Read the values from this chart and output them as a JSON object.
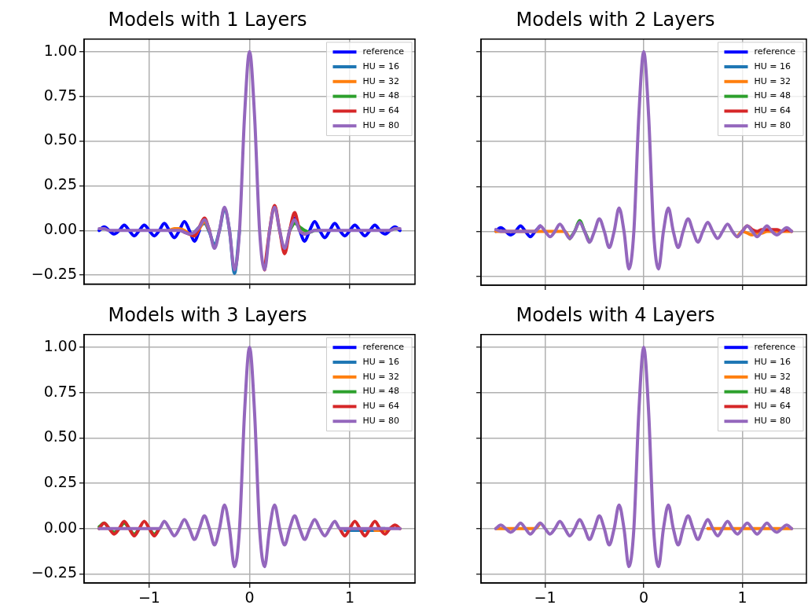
{
  "chart_data": [
    {
      "type": "line",
      "title": "Models with 1 Layers",
      "grid": true,
      "legend": "top right",
      "tick_labels": "y",
      "xlim": [
        -1.65,
        1.65
      ],
      "ylim": [
        -0.3,
        1.07
      ],
      "xticks": [
        {
          "value": -1,
          "label": null
        },
        {
          "value": 0,
          "label": null
        },
        {
          "value": 1,
          "label": null
        }
      ],
      "yticks": [
        {
          "value": -0.25,
          "label": "−0.25"
        },
        {
          "value": 0,
          "label": "0.00"
        },
        {
          "value": 0.25,
          "label": "0.25"
        },
        {
          "value": 0.5,
          "label": "0.50"
        },
        {
          "value": 0.75,
          "label": "0.75"
        },
        {
          "value": 1,
          "label": "1.00"
        }
      ],
      "x": [
        -1.5,
        -1.45,
        -1.4,
        -1.35,
        -1.3,
        -1.25,
        -1.2,
        -1.15,
        -1.1,
        -1.05,
        -1,
        -0.95,
        -0.9,
        -0.85,
        -0.8,
        -0.75,
        -0.7,
        -0.65,
        -0.6,
        -0.55,
        -0.5,
        -0.45,
        -0.4,
        -0.35,
        -0.3,
        -0.25,
        -0.2,
        -0.15,
        -0.1,
        -0.05,
        0,
        0.05,
        0.1,
        0.15,
        0.2,
        0.25,
        0.3,
        0.35,
        0.4,
        0.45,
        0.5,
        0.55,
        0.6,
        0.65,
        0.7,
        0.75,
        0.8,
        0.85,
        0.9,
        0.95,
        1,
        1.05,
        1.1,
        1.15,
        1.2,
        1.25,
        1.3,
        1.35,
        1.4,
        1.45,
        1.5
      ],
      "series": [
        {
          "name": "reference",
          "color": "#0000ff",
          "values": [
            0,
            0.02,
            0,
            -0.02,
            0,
            0.03,
            0,
            -0.03,
            0,
            0.03,
            0,
            -0.03,
            0,
            0.04,
            0,
            -0.04,
            0,
            0.05,
            0,
            -0.06,
            0,
            null,
            null,
            null,
            null,
            null,
            null,
            null,
            null,
            null,
            null,
            null,
            null,
            null,
            null,
            null,
            null,
            null,
            0,
            0.07,
            0,
            -0.06,
            0,
            0.05,
            0,
            -0.04,
            0,
            0.04,
            0,
            -0.03,
            0,
            0.03,
            0,
            -0.03,
            0,
            0.03,
            0,
            -0.02,
            0,
            0.02,
            0
          ]
        },
        {
          "name": "HU = 16",
          "color": "#1f77b4",
          "values": [
            null,
            null,
            null,
            null,
            null,
            null,
            null,
            null,
            null,
            null,
            null,
            null,
            null,
            null,
            null,
            null,
            null,
            null,
            null,
            -0.01,
            0.02,
            0.04,
            -0.01,
            -0.08,
            0,
            0.12,
            0,
            -0.24,
            0,
            null,
            null,
            null,
            null,
            null,
            null,
            null,
            null,
            null,
            null,
            null,
            null,
            null,
            null,
            null,
            null,
            null,
            null,
            null,
            null,
            null,
            null,
            null,
            null,
            null,
            null,
            null,
            null,
            null,
            null,
            null,
            null
          ]
        },
        {
          "name": "HU = 32",
          "color": "#ff7f0e",
          "values": [
            null,
            null,
            null,
            null,
            null,
            null,
            null,
            null,
            null,
            null,
            null,
            null,
            null,
            null,
            0,
            0.01,
            0.01,
            0,
            -0.02,
            -0.03,
            0.01,
            0.05,
            0,
            null,
            null,
            null,
            null,
            null,
            null,
            null,
            null,
            null,
            null,
            null,
            null,
            null,
            null,
            null,
            null,
            null,
            null,
            null,
            null,
            null,
            null,
            null,
            null,
            null,
            null,
            null,
            null,
            null,
            null,
            null,
            null,
            null,
            null,
            null,
            null,
            null,
            null
          ]
        },
        {
          "name": "HU = 48",
          "color": "#2ca02c",
          "values": [
            null,
            null,
            null,
            null,
            null,
            null,
            null,
            null,
            null,
            null,
            null,
            null,
            null,
            null,
            null,
            null,
            null,
            null,
            null,
            null,
            null,
            null,
            null,
            null,
            null,
            null,
            null,
            null,
            null,
            null,
            null,
            null,
            null,
            null,
            null,
            null,
            null,
            null,
            0,
            0.04,
            0.02,
            0,
            -0.01,
            0,
            0,
            null,
            null,
            null,
            null,
            null,
            null,
            null,
            null,
            null,
            null,
            null,
            null,
            null,
            null,
            null,
            null
          ]
        },
        {
          "name": "HU = 64",
          "color": "#d62728",
          "values": [
            null,
            null,
            null,
            null,
            null,
            null,
            null,
            null,
            null,
            null,
            null,
            null,
            null,
            null,
            null,
            null,
            null,
            -0.01,
            -0.02,
            -0.03,
            0.02,
            0.07,
            0,
            null,
            null,
            null,
            null,
            null,
            null,
            null,
            null,
            null,
            null,
            -0.22,
            0,
            0.14,
            0,
            -0.13,
            0,
            0.1,
            0,
            -0.02,
            null,
            null,
            null,
            null,
            null,
            null,
            null,
            null,
            null,
            null,
            null,
            null,
            null,
            null,
            null,
            null,
            null,
            null,
            null
          ]
        },
        {
          "name": "HU = 80",
          "color": "#9467bd",
          "values": [
            0.01,
            0.01,
            0,
            0,
            0,
            0,
            0,
            0,
            0,
            0,
            0,
            0,
            0,
            0,
            0,
            0,
            0,
            -0.01,
            -0.02,
            -0.01,
            0.02,
            0.06,
            0,
            -0.1,
            0,
            0.13,
            0,
            -0.22,
            0,
            0.64,
            1,
            0.64,
            0,
            -0.22,
            0,
            0.13,
            0,
            -0.1,
            0,
            0.06,
            0,
            -0.02,
            -0.01,
            0,
            0,
            0,
            0,
            0,
            0,
            0,
            0,
            0,
            0,
            0,
            0,
            0,
            0,
            0,
            0,
            0.01,
            0.01
          ]
        }
      ]
    },
    {
      "type": "line",
      "title": "Models with 2 Layers",
      "grid": true,
      "legend": "top right",
      "tick_labels": false,
      "xlim": [
        -1.65,
        1.65
      ],
      "ylim": [
        -0.3,
        1.07
      ],
      "xticks": [
        {
          "value": -1,
          "label": null
        },
        {
          "value": 0,
          "label": null
        },
        {
          "value": 1,
          "label": null
        }
      ],
      "yticks": [
        {
          "value": -0.25,
          "label": null
        },
        {
          "value": 0,
          "label": null
        },
        {
          "value": 0.25,
          "label": null
        },
        {
          "value": 0.5,
          "label": null
        },
        {
          "value": 0.75,
          "label": null
        },
        {
          "value": 1,
          "label": null
        }
      ],
      "x": [
        -1.5,
        -1.45,
        -1.4,
        -1.35,
        -1.3,
        -1.25,
        -1.2,
        -1.15,
        -1.1,
        -1.05,
        -1,
        -0.95,
        -0.9,
        -0.85,
        -0.8,
        -0.75,
        -0.7,
        -0.65,
        -0.6,
        -0.55,
        -0.5,
        -0.45,
        -0.4,
        -0.35,
        -0.3,
        -0.25,
        -0.2,
        -0.15,
        -0.1,
        -0.05,
        0,
        0.05,
        0.1,
        0.15,
        0.2,
        0.25,
        0.3,
        0.35,
        0.4,
        0.45,
        0.5,
        0.55,
        0.6,
        0.65,
        0.7,
        0.75,
        0.8,
        0.85,
        0.9,
        0.95,
        1,
        1.05,
        1.1,
        1.15,
        1.2,
        1.25,
        1.3,
        1.35,
        1.4,
        1.45,
        1.5
      ],
      "series": [
        {
          "name": "reference",
          "color": "#0000ff",
          "values": [
            0,
            0.02,
            0,
            -0.02,
            0,
            0.03,
            0,
            -0.03,
            0,
            0.03,
            null,
            null,
            null,
            null,
            null,
            null,
            null,
            null,
            null,
            null,
            null,
            null,
            null,
            null,
            null,
            null,
            null,
            null,
            null,
            null,
            null,
            null,
            null,
            null,
            null,
            null,
            null,
            null,
            null,
            null,
            null,
            null,
            null,
            null,
            null,
            null,
            null,
            null,
            null,
            null,
            null,
            null,
            null,
            null,
            null,
            null,
            null,
            null,
            null,
            null,
            null
          ]
        },
        {
          "name": "HU = 16",
          "color": "#1f77b4",
          "values": [
            null,
            null,
            null,
            null,
            null,
            null,
            null,
            null,
            null,
            null,
            null,
            null,
            null,
            null,
            null,
            null,
            null,
            null,
            null,
            null,
            null,
            null,
            null,
            null,
            null,
            null,
            null,
            null,
            null,
            null,
            null,
            null,
            null,
            null,
            null,
            null,
            null,
            null,
            null,
            null,
            null,
            null,
            null,
            null,
            null,
            null,
            null,
            null,
            null,
            null,
            null,
            null,
            null,
            null,
            null,
            null,
            null,
            null,
            null,
            null,
            null
          ]
        },
        {
          "name": "HU = 32",
          "color": "#ff7f0e",
          "values": [
            0,
            0,
            0,
            0,
            0,
            0,
            0,
            0,
            0,
            0,
            0,
            0,
            0,
            0,
            0,
            -0.04,
            null,
            null,
            null,
            null,
            null,
            null,
            null,
            null,
            null,
            null,
            null,
            null,
            null,
            null,
            null,
            null,
            null,
            null,
            null,
            null,
            null,
            null,
            null,
            null,
            null,
            null,
            null,
            null,
            null,
            null,
            null,
            null,
            null,
            -0.03,
            0,
            -0.01,
            -0.02,
            -0.01,
            -0.01,
            0,
            0,
            0,
            0,
            0,
            0
          ]
        },
        {
          "name": "HU = 48",
          "color": "#2ca02c",
          "values": [
            null,
            null,
            null,
            null,
            null,
            null,
            null,
            null,
            null,
            null,
            null,
            null,
            null,
            null,
            null,
            -0.04,
            0,
            0.06,
            0,
            -0.06,
            null,
            null,
            null,
            null,
            null,
            null,
            null,
            null,
            null,
            null,
            null,
            null,
            null,
            null,
            null,
            null,
            null,
            null,
            null,
            null,
            null,
            null,
            null,
            null,
            null,
            null,
            null,
            null,
            null,
            null,
            null,
            null,
            null,
            null,
            null,
            null,
            null,
            null,
            null,
            null,
            null
          ]
        },
        {
          "name": "HU = 64",
          "color": "#d62728",
          "values": [
            null,
            null,
            null,
            null,
            null,
            null,
            null,
            null,
            null,
            null,
            null,
            null,
            null,
            null,
            null,
            null,
            null,
            null,
            null,
            null,
            null,
            null,
            null,
            null,
            null,
            null,
            null,
            null,
            null,
            null,
            null,
            null,
            null,
            null,
            null,
            null,
            null,
            null,
            null,
            null,
            null,
            null,
            null,
            null,
            null,
            null,
            null,
            null,
            null,
            null,
            0,
            0.03,
            0.01,
            0,
            0.01,
            0.01,
            0.01,
            0.01,
            0,
            0.01,
            0
          ]
        },
        {
          "name": "HU = 80",
          "color": "#9467bd",
          "values": [
            0.01,
            0,
            0,
            0,
            0,
            0,
            0,
            0,
            0,
            0.03,
            0,
            -0.03,
            0,
            0.04,
            0,
            -0.04,
            0,
            0.05,
            0,
            -0.06,
            0,
            0.07,
            0,
            -0.09,
            0,
            0.13,
            0,
            -0.21,
            0,
            0.64,
            1,
            0.64,
            0,
            -0.21,
            0,
            0.13,
            0,
            -0.09,
            0,
            0.07,
            0,
            -0.06,
            0,
            0.05,
            0,
            -0.04,
            0,
            0.04,
            0,
            -0.03,
            0,
            0.03,
            0,
            -0.03,
            0,
            0.03,
            0,
            -0.02,
            0,
            0.02,
            0
          ]
        }
      ]
    },
    {
      "type": "line",
      "title": "Models with 3 Layers",
      "grid": true,
      "legend": "top right",
      "xlim": [
        -1.65,
        1.65
      ],
      "ylim": [
        -0.3,
        1.07
      ],
      "xticks": [
        {
          "value": -1,
          "label": "−1"
        },
        {
          "value": 0,
          "label": "0"
        },
        {
          "value": 1,
          "label": "1"
        }
      ],
      "yticks": [
        {
          "value": -0.25,
          "label": "−0.25"
        },
        {
          "value": 0,
          "label": "0.00"
        },
        {
          "value": 0.25,
          "label": "0.25"
        },
        {
          "value": 0.5,
          "label": "0.50"
        },
        {
          "value": 0.75,
          "label": "0.75"
        },
        {
          "value": 1,
          "label": "1.00"
        }
      ],
      "x": [
        -1.5,
        -1.45,
        -1.4,
        -1.35,
        -1.3,
        -1.25,
        -1.2,
        -1.15,
        -1.1,
        -1.05,
        -1,
        -0.95,
        -0.9,
        -0.85,
        -0.8,
        -0.75,
        -0.7,
        -0.65,
        -0.6,
        -0.55,
        -0.5,
        -0.45,
        -0.4,
        -0.35,
        -0.3,
        -0.25,
        -0.2,
        -0.15,
        -0.1,
        -0.05,
        0,
        0.05,
        0.1,
        0.15,
        0.2,
        0.25,
        0.3,
        0.35,
        0.4,
        0.45,
        0.5,
        0.55,
        0.6,
        0.65,
        0.7,
        0.75,
        0.8,
        0.85,
        0.9,
        0.95,
        1,
        1.05,
        1.1,
        1.15,
        1.2,
        1.25,
        1.3,
        1.35,
        1.4,
        1.45,
        1.5
      ],
      "series": [
        {
          "name": "reference",
          "color": "#0000ff",
          "values": [
            null,
            null,
            null,
            null,
            null,
            null,
            null,
            null,
            null,
            null,
            null,
            null,
            null,
            null,
            null,
            null,
            null,
            null,
            null,
            null,
            null,
            null,
            null,
            null,
            null,
            null,
            null,
            null,
            null,
            null,
            null,
            null,
            null,
            null,
            null,
            null,
            null,
            null,
            null,
            null,
            null,
            null,
            null,
            null,
            null,
            null,
            null,
            null,
            null,
            null,
            null,
            null,
            null,
            null,
            null,
            null,
            null,
            null,
            null,
            null,
            null
          ]
        },
        {
          "name": "HU = 16",
          "color": "#1f77b4",
          "values": [
            null,
            null,
            null,
            null,
            null,
            null,
            null,
            null,
            null,
            null,
            null,
            null,
            null,
            null,
            null,
            null,
            null,
            null,
            null,
            null,
            null,
            null,
            null,
            null,
            null,
            null,
            null,
            null,
            null,
            null,
            null,
            null,
            null,
            null,
            null,
            null,
            null,
            null,
            null,
            null,
            null,
            null,
            null,
            null,
            null,
            null,
            null,
            null,
            null,
            -0.01,
            -0.01,
            -0.01,
            -0.01,
            -0.01,
            -0.01,
            -0.01,
            0,
            0,
            null,
            null,
            null
          ]
        },
        {
          "name": "HU = 32",
          "color": "#ff7f0e",
          "values": [
            null,
            null,
            null,
            null,
            null,
            null,
            null,
            null,
            null,
            null,
            null,
            null,
            null,
            null,
            null,
            null,
            null,
            null,
            null,
            null,
            null,
            null,
            null,
            null,
            null,
            null,
            null,
            null,
            null,
            null,
            null,
            null,
            null,
            null,
            null,
            null,
            null,
            null,
            null,
            null,
            null,
            null,
            null,
            null,
            null,
            null,
            null,
            null,
            null,
            null,
            null,
            null,
            null,
            null,
            null,
            -0.01,
            -0.01,
            -0.01,
            0,
            null,
            null
          ]
        },
        {
          "name": "HU = 48",
          "color": "#2ca02c",
          "values": [
            0.01,
            0.03,
            0,
            -0.02,
            0,
            0.03,
            0,
            -0.03,
            0,
            null,
            0,
            -0.03,
            0,
            null,
            null,
            null,
            null,
            null,
            null,
            null,
            null,
            null,
            null,
            null,
            null,
            null,
            null,
            null,
            null,
            null,
            null,
            null,
            null,
            null,
            null,
            null,
            null,
            null,
            null,
            null,
            null,
            null,
            null,
            null,
            null,
            null,
            null,
            null,
            null,
            null,
            null,
            null,
            null,
            null,
            null,
            null,
            null,
            null,
            null,
            null,
            null
          ]
        },
        {
          "name": "HU = 64",
          "color": "#d62728",
          "values": [
            0,
            0.03,
            0,
            -0.03,
            0,
            0.04,
            0,
            -0.04,
            0,
            0.04,
            0,
            -0.04,
            0,
            null,
            null,
            null,
            null,
            null,
            null,
            null,
            null,
            null,
            null,
            null,
            null,
            null,
            null,
            null,
            null,
            null,
            null,
            null,
            null,
            null,
            null,
            null,
            null,
            null,
            null,
            null,
            null,
            null,
            null,
            null,
            null,
            null,
            null,
            null,
            0,
            -0.04,
            0,
            0.04,
            0,
            -0.04,
            0,
            0.04,
            0,
            -0.03,
            0,
            0.02,
            0
          ]
        },
        {
          "name": "HU = 80",
          "color": "#9467bd",
          "values": [
            0,
            0,
            0,
            0,
            0,
            0,
            0,
            0,
            0,
            0,
            0,
            0,
            0,
            0.04,
            0,
            -0.04,
            0,
            0.05,
            0,
            -0.06,
            0,
            0.07,
            0,
            -0.09,
            0,
            0.13,
            0,
            -0.21,
            0,
            0.64,
            1,
            0.64,
            0,
            -0.21,
            0,
            0.13,
            0,
            -0.09,
            0,
            0.07,
            0,
            -0.06,
            0,
            0.05,
            0,
            -0.04,
            0,
            0.04,
            0,
            0,
            0,
            0,
            0,
            0,
            0,
            0,
            0,
            0,
            0,
            0,
            0
          ]
        }
      ]
    },
    {
      "type": "line",
      "title": "Models with 4 Layers",
      "grid": true,
      "legend": "top right",
      "tick_labels": "x",
      "xlim": [
        -1.65,
        1.65
      ],
      "ylim": [
        -0.3,
        1.07
      ],
      "xticks": [
        {
          "value": -1,
          "label": "−1"
        },
        {
          "value": 0,
          "label": "0"
        },
        {
          "value": 1,
          "label": "1"
        }
      ],
      "yticks": [
        {
          "value": -0.25,
          "label": null
        },
        {
          "value": 0,
          "label": null
        },
        {
          "value": 0.25,
          "label": null
        },
        {
          "value": 0.5,
          "label": null
        },
        {
          "value": 0.75,
          "label": null
        },
        {
          "value": 1,
          "label": null
        }
      ],
      "x": [
        -1.5,
        -1.45,
        -1.4,
        -1.35,
        -1.3,
        -1.25,
        -1.2,
        -1.15,
        -1.1,
        -1.05,
        -1,
        -0.95,
        -0.9,
        -0.85,
        -0.8,
        -0.75,
        -0.7,
        -0.65,
        -0.6,
        -0.55,
        -0.5,
        -0.45,
        -0.4,
        -0.35,
        -0.3,
        -0.25,
        -0.2,
        -0.15,
        -0.1,
        -0.05,
        0,
        0.05,
        0.1,
        0.15,
        0.2,
        0.25,
        0.3,
        0.35,
        0.4,
        0.45,
        0.5,
        0.55,
        0.6,
        0.65,
        0.7,
        0.75,
        0.8,
        0.85,
        0.9,
        0.95,
        1,
        1.05,
        1.1,
        1.15,
        1.2,
        1.25,
        1.3,
        1.35,
        1.4,
        1.45,
        1.5
      ],
      "series": [
        {
          "name": "reference",
          "color": "#0000ff",
          "values": [
            null,
            null,
            null,
            null,
            null,
            null,
            null,
            null,
            null,
            null,
            null,
            null,
            null,
            null,
            null,
            null,
            null,
            null,
            null,
            null,
            null,
            null,
            null,
            null,
            null,
            null,
            null,
            null,
            null,
            null,
            null,
            null,
            null,
            null,
            null,
            null,
            null,
            null,
            null,
            null,
            null,
            null,
            null,
            null,
            null,
            null,
            null,
            null,
            null,
            null,
            null,
            null,
            null,
            null,
            null,
            null,
            null,
            null,
            null,
            null,
            null
          ]
        },
        {
          "name": "HU = 16",
          "color": "#1f77b4",
          "values": [
            null,
            null,
            null,
            null,
            null,
            null,
            null,
            null,
            null,
            null,
            null,
            null,
            null,
            null,
            null,
            null,
            null,
            null,
            null,
            null,
            null,
            null,
            null,
            null,
            null,
            null,
            null,
            null,
            null,
            null,
            null,
            null,
            null,
            null,
            null,
            null,
            null,
            null,
            null,
            null,
            null,
            null,
            null,
            null,
            null,
            null,
            null,
            null,
            null,
            null,
            null,
            null,
            null,
            null,
            null,
            null,
            null,
            null,
            null,
            null,
            null
          ]
        },
        {
          "name": "HU = 32",
          "color": "#ff7f0e",
          "values": [
            0,
            0,
            0,
            0,
            0,
            0,
            0,
            0,
            0,
            0.03,
            null,
            null,
            null,
            null,
            null,
            null,
            null,
            null,
            null,
            null,
            null,
            null,
            null,
            null,
            null,
            null,
            null,
            null,
            null,
            null,
            null,
            null,
            null,
            null,
            null,
            null,
            null,
            null,
            null,
            null,
            null,
            null,
            null,
            0,
            0,
            0,
            0,
            0,
            0,
            0,
            0,
            0,
            0,
            0,
            0,
            0,
            0,
            0,
            0,
            0,
            0
          ]
        },
        {
          "name": "HU = 48",
          "color": "#2ca02c",
          "values": [
            null,
            null,
            null,
            null,
            null,
            null,
            null,
            null,
            null,
            null,
            null,
            null,
            null,
            null,
            null,
            null,
            null,
            null,
            null,
            null,
            null,
            null,
            null,
            null,
            null,
            null,
            null,
            null,
            null,
            null,
            null,
            null,
            null,
            null,
            null,
            null,
            null,
            null,
            null,
            null,
            null,
            null,
            null,
            null,
            null,
            null,
            null,
            null,
            null,
            null,
            null,
            null,
            null,
            null,
            null,
            null,
            null,
            null,
            null,
            null,
            null
          ]
        },
        {
          "name": "HU = 64",
          "color": "#d62728",
          "values": [
            null,
            null,
            null,
            null,
            null,
            null,
            null,
            null,
            null,
            null,
            null,
            null,
            null,
            null,
            null,
            null,
            null,
            null,
            null,
            null,
            null,
            null,
            null,
            null,
            null,
            null,
            null,
            null,
            null,
            null,
            null,
            null,
            null,
            null,
            null,
            null,
            null,
            null,
            null,
            null,
            null,
            null,
            null,
            null,
            null,
            null,
            null,
            null,
            null,
            null,
            null,
            null,
            null,
            null,
            null,
            null,
            null,
            null,
            null,
            null,
            null
          ]
        },
        {
          "name": "HU = 80",
          "color": "#9467bd",
          "values": [
            0,
            0.02,
            0,
            -0.02,
            0,
            0.03,
            0,
            -0.03,
            0,
            0.03,
            0,
            -0.03,
            0,
            0.04,
            0,
            -0.04,
            0,
            0.05,
            0,
            -0.06,
            0,
            0.07,
            0,
            -0.09,
            0,
            0.13,
            0,
            -0.21,
            0,
            0.64,
            1,
            0.64,
            0,
            -0.21,
            0,
            0.13,
            0,
            -0.09,
            0,
            0.07,
            0,
            -0.06,
            0,
            0.05,
            0,
            -0.04,
            0,
            0.04,
            0,
            -0.03,
            0,
            0.03,
            0,
            -0.03,
            0,
            0.03,
            0,
            -0.02,
            0,
            0.02,
            0
          ]
        }
      ]
    }
  ]
}
